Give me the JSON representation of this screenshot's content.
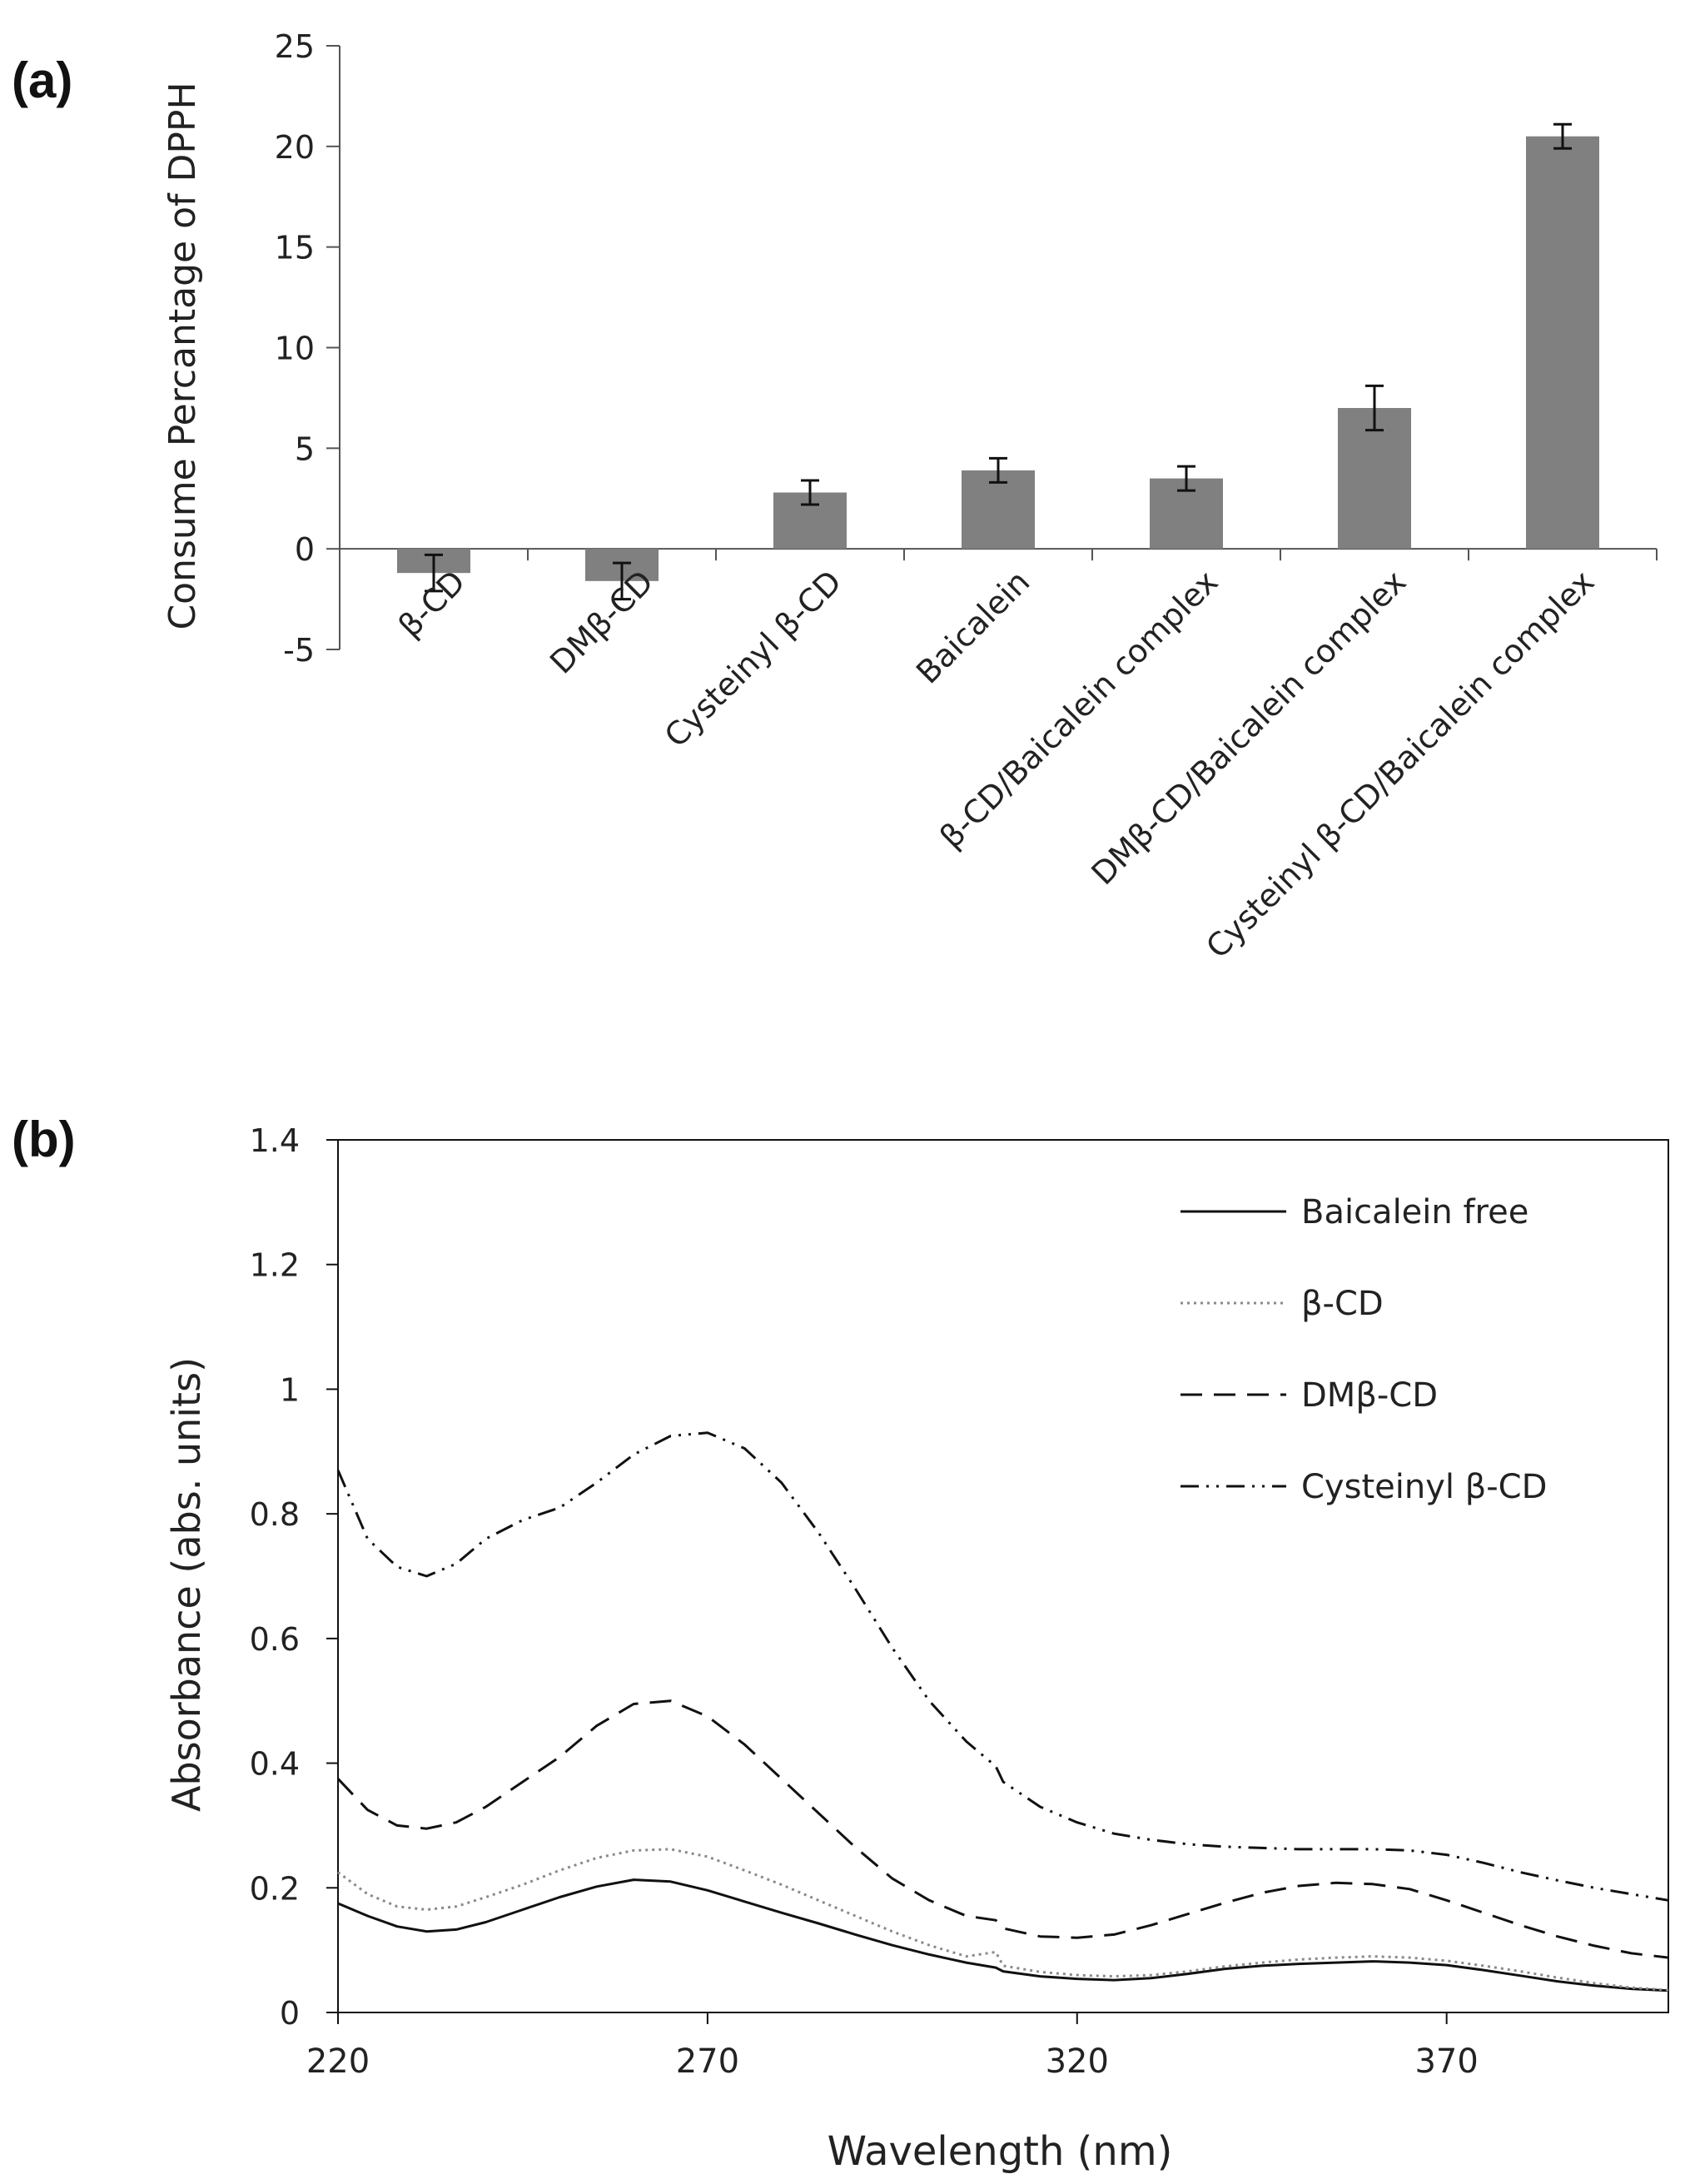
{
  "panel_labels": {
    "a": "(a)",
    "b": "(b)"
  },
  "chart_data": [
    {
      "type": "bar",
      "title": "",
      "xlabel": "",
      "ylabel": "Consume Percantage of DPPH",
      "ylim": [
        -5,
        25
      ],
      "yticks": [
        -5,
        0,
        5,
        10,
        15,
        20,
        25
      ],
      "grid": false,
      "bar_color": "#808080",
      "categories": [
        "β-CD",
        "DMβ-CD",
        "Cysteinyl β-CD",
        "Baicalein",
        "β-CD/Baicalein  complex",
        "DMβ-CD/Baicalein  complex",
        "Cysteinyl β-CD/Baicalein  complex"
      ],
      "values": [
        -1.2,
        -1.6,
        2.8,
        3.9,
        3.5,
        7.0,
        20.5
      ],
      "errors": [
        0.9,
        0.9,
        0.6,
        0.6,
        0.6,
        1.1,
        0.6
      ]
    },
    {
      "type": "line",
      "title": "",
      "xlabel": "Wavelength (nm)",
      "ylabel": "Absorbance (abs. units)",
      "xlim": [
        220,
        400
      ],
      "ylim": [
        0,
        1.4
      ],
      "xticks": [
        220,
        270,
        320,
        370
      ],
      "yticks": [
        0,
        0.2,
        0.4,
        0.6,
        0.8,
        1.0,
        1.2,
        1.4
      ],
      "ytick_labels": [
        "0",
        "0.2",
        "0.4",
        "0.6",
        "0.8",
        "1",
        "1.2",
        "1.4"
      ],
      "legend_position": "top-right",
      "grid": false,
      "series": [
        {
          "name": "Baicalein free",
          "style": "solid",
          "color": "#111111",
          "x": [
            220,
            224,
            228,
            232,
            236,
            240,
            245,
            250,
            255,
            260,
            265,
            270,
            275,
            280,
            285,
            290,
            295,
            300,
            305,
            309,
            310,
            315,
            320,
            325,
            330,
            335,
            340,
            345,
            350,
            355,
            360,
            365,
            370,
            375,
            380,
            385,
            390,
            395,
            400
          ],
          "y": [
            0.175,
            0.155,
            0.138,
            0.13,
            0.133,
            0.145,
            0.165,
            0.185,
            0.202,
            0.213,
            0.21,
            0.196,
            0.178,
            0.16,
            0.143,
            0.125,
            0.108,
            0.093,
            0.08,
            0.072,
            0.066,
            0.058,
            0.054,
            0.052,
            0.055,
            0.062,
            0.07,
            0.075,
            0.078,
            0.08,
            0.082,
            0.08,
            0.076,
            0.068,
            0.059,
            0.05,
            0.043,
            0.038,
            0.035
          ]
        },
        {
          "name": "β-CD",
          "style": "dotted",
          "color": "#8a8a8a",
          "x": [
            220,
            224,
            228,
            232,
            236,
            240,
            245,
            250,
            255,
            260,
            265,
            270,
            275,
            280,
            285,
            290,
            295,
            300,
            305,
            309,
            310,
            315,
            320,
            325,
            330,
            335,
            340,
            345,
            350,
            355,
            360,
            365,
            370,
            375,
            380,
            385,
            390,
            395,
            400
          ],
          "y": [
            0.225,
            0.19,
            0.17,
            0.165,
            0.17,
            0.185,
            0.205,
            0.228,
            0.248,
            0.26,
            0.262,
            0.25,
            0.228,
            0.205,
            0.18,
            0.155,
            0.13,
            0.108,
            0.09,
            0.097,
            0.075,
            0.065,
            0.06,
            0.058,
            0.06,
            0.066,
            0.074,
            0.08,
            0.085,
            0.088,
            0.09,
            0.088,
            0.083,
            0.075,
            0.066,
            0.056,
            0.047,
            0.04,
            0.036
          ]
        },
        {
          "name": "DMβ-CD",
          "style": "dashed",
          "color": "#111111",
          "x": [
            220,
            224,
            228,
            232,
            236,
            240,
            245,
            250,
            255,
            260,
            265,
            270,
            275,
            280,
            285,
            290,
            295,
            300,
            305,
            309,
            310,
            315,
            320,
            325,
            330,
            335,
            340,
            345,
            350,
            355,
            360,
            365,
            370,
            375,
            380,
            385,
            390,
            395,
            400
          ],
          "y": [
            0.375,
            0.325,
            0.3,
            0.295,
            0.305,
            0.33,
            0.37,
            0.41,
            0.46,
            0.495,
            0.5,
            0.475,
            0.43,
            0.375,
            0.32,
            0.265,
            0.215,
            0.18,
            0.155,
            0.148,
            0.135,
            0.122,
            0.12,
            0.125,
            0.14,
            0.158,
            0.176,
            0.192,
            0.203,
            0.208,
            0.206,
            0.198,
            0.18,
            0.16,
            0.14,
            0.122,
            0.107,
            0.095,
            0.088
          ]
        },
        {
          "name": "Cysteinyl  β-CD",
          "style": "dashdotdot",
          "color": "#111111",
          "x": [
            220,
            224,
            228,
            232,
            236,
            240,
            245,
            250,
            255,
            260,
            265,
            270,
            275,
            280,
            285,
            290,
            295,
            300,
            305,
            309,
            310,
            315,
            320,
            325,
            330,
            335,
            340,
            345,
            350,
            355,
            360,
            365,
            370,
            375,
            380,
            385,
            390,
            395,
            400
          ],
          "y": [
            0.87,
            0.76,
            0.715,
            0.7,
            0.72,
            0.76,
            0.79,
            0.81,
            0.85,
            0.895,
            0.925,
            0.93,
            0.905,
            0.85,
            0.77,
            0.68,
            0.585,
            0.5,
            0.435,
            0.395,
            0.37,
            0.33,
            0.305,
            0.287,
            0.277,
            0.27,
            0.266,
            0.264,
            0.262,
            0.262,
            0.262,
            0.26,
            0.253,
            0.24,
            0.225,
            0.212,
            0.2,
            0.19,
            0.18
          ]
        }
      ]
    }
  ]
}
